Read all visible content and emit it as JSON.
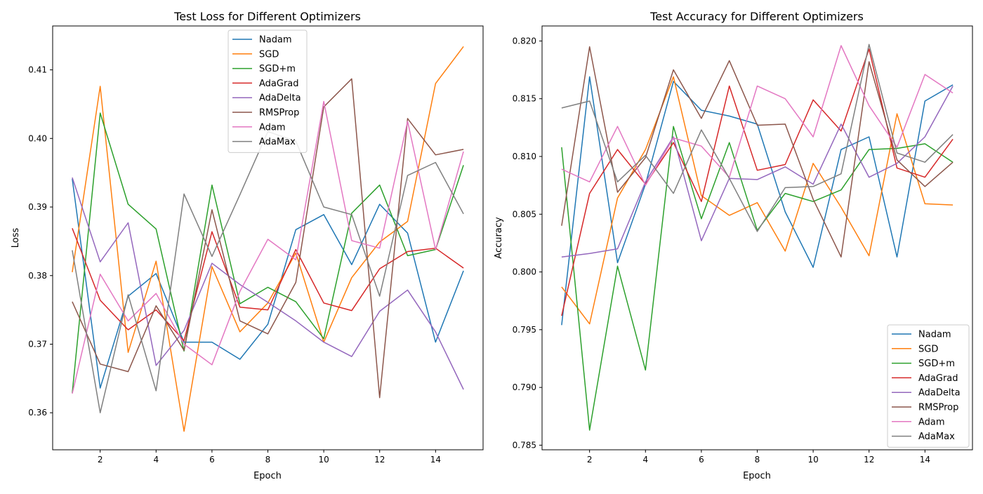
{
  "figure": {
    "colors": {
      "Nadam": "#1f77b4",
      "SGD": "#ff7f0e",
      "SGD+m": "#2ca02c",
      "AdaGrad": "#d62728",
      "AdaDelta": "#9467bd",
      "RMSProp": "#8c564b",
      "Adam": "#e377c2",
      "AdaMax": "#7f7f7f"
    }
  },
  "chart_data": [
    {
      "type": "line",
      "title": "Test Loss for Different Optimizers",
      "xlabel": "Epoch",
      "ylabel": "Loss",
      "xlim": [
        0.3,
        15.7
      ],
      "ylim": [
        0.3546,
        0.4164
      ],
      "xticks": [
        2,
        4,
        6,
        8,
        10,
        12,
        14
      ],
      "yticks": [
        0.36,
        0.37,
        0.38,
        0.39,
        0.4,
        0.41
      ],
      "ytick_labels": [
        "0.36",
        "0.37",
        "0.38",
        "0.39",
        "0.40",
        "0.41"
      ],
      "legend_position": "upper center",
      "grid": false,
      "x": [
        1,
        2,
        3,
        4,
        5,
        6,
        7,
        8,
        9,
        10,
        11,
        12,
        13,
        14,
        15
      ],
      "series": [
        {
          "name": "Nadam",
          "values": [
            0.3941,
            0.3636,
            0.377,
            0.3803,
            0.3703,
            0.3703,
            0.3678,
            0.3729,
            0.3867,
            0.3889,
            0.3816,
            0.3904,
            0.3862,
            0.3703,
            0.3807
          ]
        },
        {
          "name": "SGD",
          "values": [
            0.3805,
            0.4076,
            0.3688,
            0.3821,
            0.3573,
            0.3813,
            0.3718,
            0.376,
            0.3833,
            0.3703,
            0.3797,
            0.3849,
            0.3879,
            0.408,
            0.4134
          ]
        },
        {
          "name": "SGD+m",
          "values": [
            0.3629,
            0.4037,
            0.3904,
            0.3868,
            0.369,
            0.3932,
            0.3759,
            0.3783,
            0.3762,
            0.3708,
            0.3891,
            0.3932,
            0.3829,
            0.3838,
            0.3961
          ]
        },
        {
          "name": "AdaGrad",
          "values": [
            0.3869,
            0.3764,
            0.3721,
            0.375,
            0.3705,
            0.3864,
            0.3754,
            0.375,
            0.3838,
            0.376,
            0.3749,
            0.381,
            0.3835,
            0.384,
            0.3811
          ]
        },
        {
          "name": "AdaDelta",
          "values": [
            0.3943,
            0.382,
            0.3877,
            0.3669,
            0.372,
            0.3818,
            0.3787,
            0.3761,
            0.3734,
            0.3703,
            0.3682,
            0.3748,
            0.3779,
            0.3718,
            0.3634
          ]
        },
        {
          "name": "RMSProp",
          "values": [
            0.3762,
            0.3671,
            0.366,
            0.3756,
            0.3691,
            0.3896,
            0.3734,
            0.3715,
            0.379,
            0.4046,
            0.4087,
            0.3622,
            0.4029,
            0.3976,
            0.3984
          ]
        },
        {
          "name": "Adam",
          "values": [
            0.3628,
            0.3802,
            0.3734,
            0.3774,
            0.37,
            0.367,
            0.3777,
            0.3853,
            0.3823,
            0.4054,
            0.3851,
            0.384,
            0.4025,
            0.3838,
            0.3981
          ]
        },
        {
          "name": "AdaMax",
          "values": [
            0.3837,
            0.36,
            0.3772,
            0.3632,
            0.3919,
            0.3828,
            0.3918,
            0.401,
            0.3996,
            0.39,
            0.3889,
            0.377,
            0.3946,
            0.3965,
            0.389
          ]
        }
      ]
    },
    {
      "type": "line",
      "title": "Test Accuracy for Different Optimizers",
      "xlabel": "Epoch",
      "ylabel": "Accuracy",
      "xlim": [
        0.3,
        15.7
      ],
      "ylim": [
        0.7846,
        0.8213
      ],
      "xticks": [
        2,
        4,
        6,
        8,
        10,
        12,
        14
      ],
      "yticks": [
        0.785,
        0.79,
        0.795,
        0.8,
        0.805,
        0.81,
        0.815,
        0.82
      ],
      "ytick_labels": [
        "0.785",
        "0.790",
        "0.795",
        "0.800",
        "0.805",
        "0.810",
        "0.815",
        "0.820"
      ],
      "legend_position": "lower right",
      "grid": false,
      "x": [
        1,
        2,
        3,
        4,
        5,
        6,
        7,
        8,
        9,
        10,
        11,
        12,
        13,
        14,
        15
      ],
      "series": [
        {
          "name": "Nadam",
          "values": [
            0.7954,
            0.8169,
            0.8008,
            0.8076,
            0.8165,
            0.814,
            0.8135,
            0.8128,
            0.8052,
            0.8004,
            0.8106,
            0.8117,
            0.8013,
            0.8148,
            0.8162
          ]
        },
        {
          "name": "SGD",
          "values": [
            0.7987,
            0.7955,
            0.8064,
            0.8106,
            0.8169,
            0.8066,
            0.8049,
            0.806,
            0.8018,
            0.8094,
            0.8056,
            0.8014,
            0.8137,
            0.8059,
            0.8058
          ]
        },
        {
          "name": "SGD+m",
          "values": [
            0.8108,
            0.7863,
            0.8005,
            0.7915,
            0.8126,
            0.8046,
            0.8112,
            0.8036,
            0.8068,
            0.8061,
            0.8071,
            0.8106,
            0.8107,
            0.8111,
            0.8095
          ]
        },
        {
          "name": "AdaGrad",
          "values": [
            0.7962,
            0.8068,
            0.8106,
            0.8076,
            0.8112,
            0.8061,
            0.8161,
            0.8088,
            0.8093,
            0.8149,
            0.8122,
            0.8193,
            0.809,
            0.8082,
            0.8115
          ]
        },
        {
          "name": "AdaDelta",
          "values": [
            0.8013,
            0.8016,
            0.802,
            0.8078,
            0.8117,
            0.8027,
            0.8081,
            0.808,
            0.8091,
            0.8076,
            0.8128,
            0.8082,
            0.8094,
            0.8117,
            0.8161
          ]
        },
        {
          "name": "RMSProp",
          "values": [
            0.804,
            0.8195,
            0.8069,
            0.8099,
            0.8175,
            0.8133,
            0.8183,
            0.8127,
            0.8128,
            0.8063,
            0.8013,
            0.8182,
            0.8097,
            0.8074,
            0.8095
          ]
        },
        {
          "name": "Adam",
          "values": [
            0.8089,
            0.8078,
            0.8126,
            0.8075,
            0.8116,
            0.8109,
            0.8082,
            0.8161,
            0.815,
            0.8117,
            0.8196,
            0.8144,
            0.8108,
            0.8171,
            0.8155
          ]
        },
        {
          "name": "AdaMax",
          "values": [
            0.8142,
            0.8148,
            0.8078,
            0.8101,
            0.8068,
            0.8123,
            0.8081,
            0.8035,
            0.8073,
            0.8074,
            0.8085,
            0.8197,
            0.8103,
            0.8095,
            0.8119
          ]
        }
      ]
    }
  ]
}
